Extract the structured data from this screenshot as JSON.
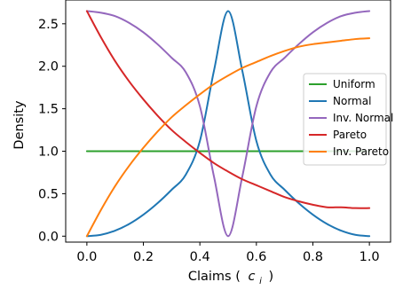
{
  "chart_data": {
    "type": "line",
    "xlabel": "Claims ( c_i )",
    "xlabel_main": "Claims (",
    "xlabel_var": "c",
    "xlabel_sub": "i",
    "xlabel_close": ")",
    "ylabel": "Density",
    "xlim": [
      -0.075,
      1.075
    ],
    "ylim": [
      -0.07,
      2.78
    ],
    "xticks": [
      0.0,
      0.2,
      0.4,
      0.6,
      0.8,
      1.0
    ],
    "xtick_labels": [
      "0.0",
      "0.2",
      "0.4",
      "0.6",
      "0.8",
      "1.0"
    ],
    "yticks": [
      0.0,
      0.5,
      1.0,
      1.5,
      2.0,
      2.5
    ],
    "ytick_labels": [
      "0.0",
      "0.5",
      "1.0",
      "1.5",
      "2.0",
      "2.5"
    ],
    "grid": false,
    "legend_position": "center-right",
    "x": [
      0.0,
      0.05,
      0.1,
      0.15,
      0.2,
      0.25,
      0.3,
      0.35,
      0.4,
      0.45,
      0.5,
      0.55,
      0.6,
      0.65,
      0.7,
      0.75,
      0.8,
      0.85,
      0.9,
      0.95,
      1.0
    ],
    "series": [
      {
        "name": "Uniform",
        "color": "#2ca02c",
        "values": [
          1.0,
          1.0,
          1.0,
          1.0,
          1.0,
          1.0,
          1.0,
          1.0,
          1.0,
          1.0,
          1.0,
          1.0,
          1.0,
          1.0,
          1.0,
          1.0,
          1.0,
          1.0,
          1.0,
          1.0,
          1.0
        ]
      },
      {
        "name": "Normal",
        "color": "#1f77b4",
        "values": [
          0.0,
          0.016,
          0.065,
          0.144,
          0.253,
          0.388,
          0.546,
          0.724,
          1.12,
          1.95,
          2.65,
          1.95,
          1.12,
          0.724,
          0.546,
          0.388,
          0.253,
          0.144,
          0.065,
          0.016,
          0.0
        ]
      },
      {
        "name": "Inv. Normal",
        "color": "#9467bd",
        "values": [
          2.65,
          2.63,
          2.59,
          2.51,
          2.4,
          2.26,
          2.1,
          1.93,
          1.53,
          0.7,
          0.0,
          0.7,
          1.53,
          1.93,
          2.1,
          2.26,
          2.4,
          2.51,
          2.59,
          2.63,
          2.65
        ]
      },
      {
        "name": "Pareto",
        "color": "#d62728",
        "values": [
          2.65,
          2.34,
          2.06,
          1.82,
          1.61,
          1.42,
          1.25,
          1.11,
          0.98,
          0.86,
          0.76,
          0.67,
          0.6,
          0.53,
          0.46,
          0.41,
          0.37,
          0.34,
          0.34,
          0.33,
          0.33
        ]
      },
      {
        "name": "Inv. Pareto",
        "color": "#ff7f0e",
        "values": [
          0.0,
          0.31,
          0.59,
          0.83,
          1.04,
          1.23,
          1.4,
          1.54,
          1.67,
          1.79,
          1.89,
          1.98,
          2.05,
          2.12,
          2.18,
          2.23,
          2.26,
          2.28,
          2.3,
          2.32,
          2.33
        ]
      }
    ]
  }
}
